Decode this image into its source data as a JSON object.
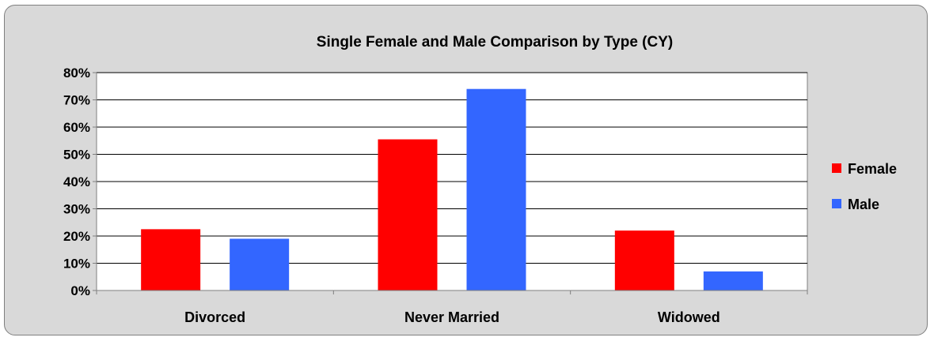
{
  "chart_data": {
    "type": "bar",
    "title": "Single Female and Male Comparison by Type (CY)",
    "xlabel": "",
    "ylabel": "",
    "categories": [
      "Divorced",
      "Never Married",
      "Widowed"
    ],
    "series": [
      {
        "name": "Female",
        "values": [
          22.5,
          55.5,
          22.0
        ],
        "color": "#ff0000"
      },
      {
        "name": "Male",
        "values": [
          19.0,
          74.0,
          7.0
        ],
        "color": "#3366ff"
      }
    ],
    "ylim": [
      0,
      80
    ],
    "yticks": [
      "0%",
      "10%",
      "20%",
      "30%",
      "40%",
      "50%",
      "60%",
      "70%",
      "80%"
    ],
    "grid": true,
    "legend": "right"
  }
}
